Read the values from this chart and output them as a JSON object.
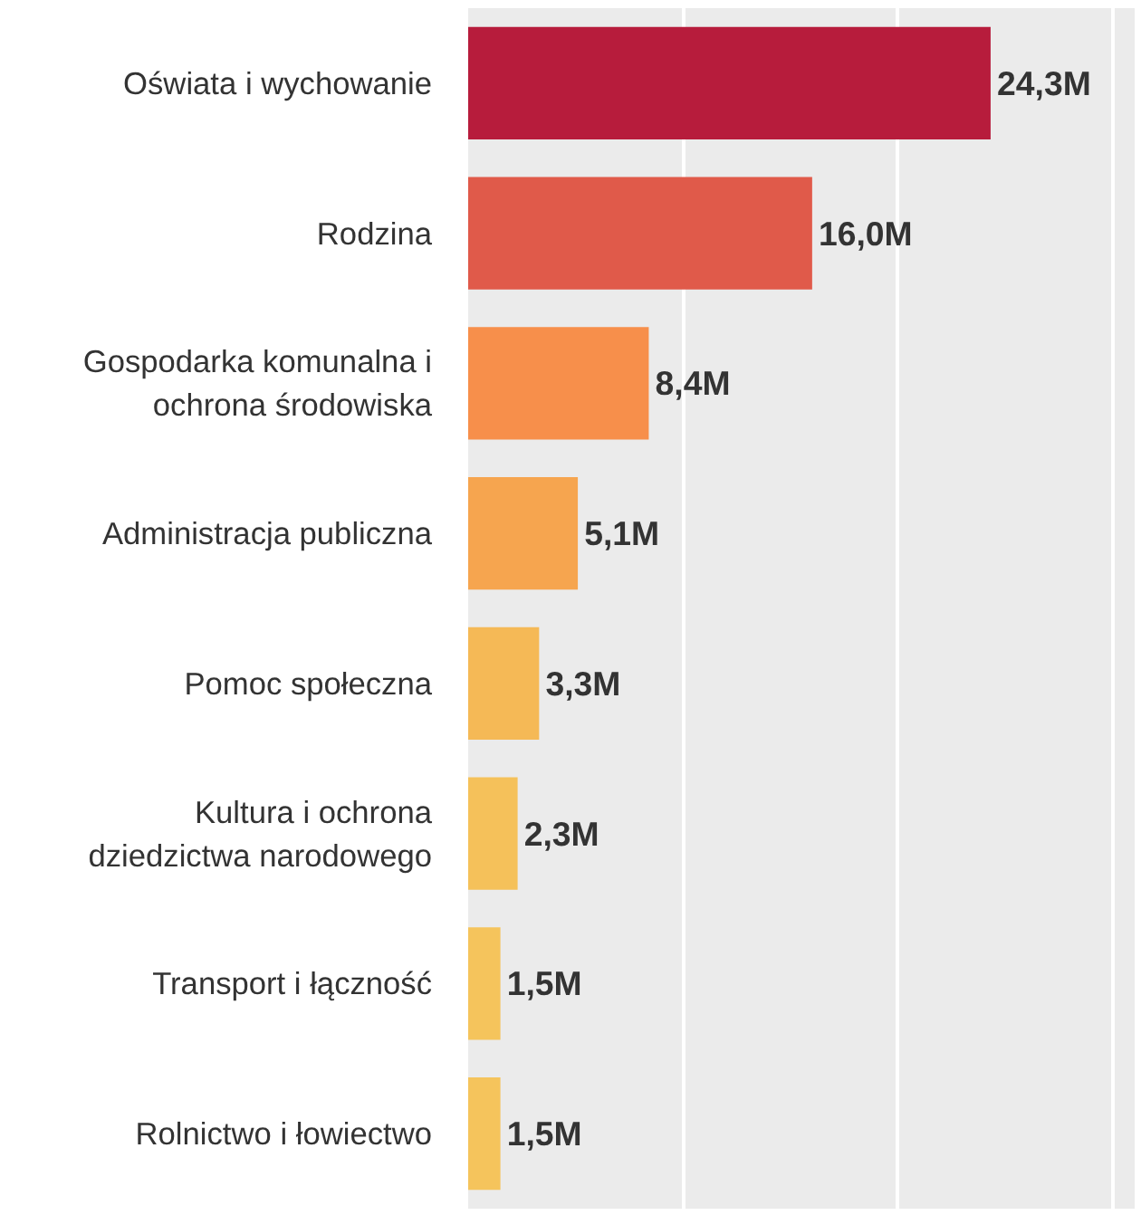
{
  "chart_data": {
    "type": "bar",
    "orientation": "horizontal",
    "categories": [
      "Oświata i wychowanie",
      "Rodzina",
      "Gospodarka komunalna i ochrona środowiska",
      "Administracja publiczna",
      "Pomoc społeczna",
      "Kultura i ochrona dziedzictwa narodowego",
      "Transport i łączność",
      "Rolnictwo i łowiectwo"
    ],
    "values": [
      24.3,
      16.0,
      8.4,
      5.1,
      3.3,
      2.3,
      1.5,
      1.5
    ],
    "colors": [
      "#b71c3c",
      "#e05a4a",
      "#f78f4b",
      "#f6a54f",
      "#f5b956",
      "#f5c15a",
      "#f5c45c",
      "#f5c45c"
    ],
    "value_labels": [
      "24,3M",
      "16,0M",
      "8,4M",
      "5,1M",
      "3,3M",
      "2,3M",
      "1,5M",
      "1,5M"
    ],
    "xlim": [
      0,
      31
    ],
    "xticks": [
      {
        "value": 0,
        "label": null
      },
      {
        "value": 10,
        "label": null
      },
      {
        "value": 20,
        "label": null
      },
      {
        "value": 30,
        "label": null
      }
    ],
    "tick_labels": "y",
    "grid": "x"
  }
}
